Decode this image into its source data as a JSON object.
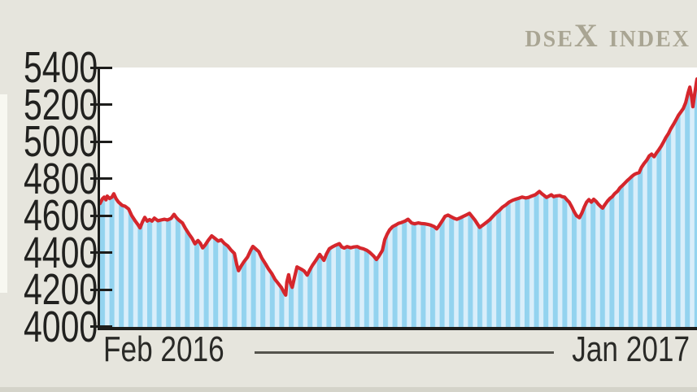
{
  "title": "dseX index",
  "colors": {
    "background": "#e6e5dd",
    "plot_background": "#ffffff",
    "stripe_dark": "#93d3ef",
    "stripe_light": "#d9eefa",
    "line": "#d5262c",
    "axis": "#1d1d1b",
    "label_text": "#21211f",
    "title_text": "#a9a593",
    "divider": "#54534c"
  },
  "x_axis": {
    "left_label": "Feb 2016",
    "right_label": "Jan 2017"
  },
  "chart_data": {
    "type": "area",
    "title": "DSEX Index",
    "xlabel": "",
    "ylabel": "",
    "x_range_labels": [
      "Feb 2016",
      "Jan 2017"
    ],
    "ylim": [
      4000,
      5400
    ],
    "yticks": [
      5400,
      5200,
      5000,
      4800,
      4600,
      4400,
      4200,
      4000
    ],
    "grid": false,
    "legend": "none",
    "series": [
      {
        "name": "DSEX",
        "points_format": "[percent_along_x_axis, index_value]",
        "points": [
          [
            0.0,
            4665
          ],
          [
            0.4,
            4690
          ],
          [
            0.7,
            4700
          ],
          [
            1.0,
            4685
          ],
          [
            1.2,
            4705
          ],
          [
            1.6,
            4692
          ],
          [
            2.0,
            4700
          ],
          [
            2.3,
            4718
          ],
          [
            2.7,
            4690
          ],
          [
            3.1,
            4672
          ],
          [
            3.7,
            4655
          ],
          [
            4.2,
            4650
          ],
          [
            4.8,
            4635
          ],
          [
            5.3,
            4600
          ],
          [
            5.9,
            4570
          ],
          [
            6.4,
            4548
          ],
          [
            6.7,
            4533
          ],
          [
            7.1,
            4565
          ],
          [
            7.5,
            4590
          ],
          [
            7.9,
            4570
          ],
          [
            8.3,
            4578
          ],
          [
            8.7,
            4570
          ],
          [
            9.1,
            4586
          ],
          [
            9.7,
            4572
          ],
          [
            10.2,
            4576
          ],
          [
            10.8,
            4580
          ],
          [
            11.3,
            4576
          ],
          [
            11.9,
            4584
          ],
          [
            12.4,
            4606
          ],
          [
            12.8,
            4588
          ],
          [
            13.2,
            4575
          ],
          [
            13.8,
            4560
          ],
          [
            14.3,
            4530
          ],
          [
            14.9,
            4500
          ],
          [
            15.4,
            4478
          ],
          [
            15.9,
            4447
          ],
          [
            16.4,
            4465
          ],
          [
            16.8,
            4450
          ],
          [
            17.2,
            4425
          ],
          [
            17.6,
            4440
          ],
          [
            18.1,
            4465
          ],
          [
            18.7,
            4490
          ],
          [
            19.2,
            4478
          ],
          [
            19.8,
            4462
          ],
          [
            20.3,
            4468
          ],
          [
            20.8,
            4450
          ],
          [
            21.4,
            4435
          ],
          [
            21.9,
            4415
          ],
          [
            22.5,
            4395
          ],
          [
            22.9,
            4335
          ],
          [
            23.2,
            4302
          ],
          [
            23.6,
            4325
          ],
          [
            24.1,
            4350
          ],
          [
            24.7,
            4375
          ],
          [
            25.2,
            4410
          ],
          [
            25.6,
            4433
          ],
          [
            26.0,
            4422
          ],
          [
            26.6,
            4405
          ],
          [
            27.1,
            4370
          ],
          [
            27.7,
            4340
          ],
          [
            28.2,
            4312
          ],
          [
            28.8,
            4285
          ],
          [
            29.3,
            4255
          ],
          [
            29.8,
            4235
          ],
          [
            30.4,
            4210
          ],
          [
            30.8,
            4185
          ],
          [
            31.1,
            4170
          ],
          [
            31.3,
            4240
          ],
          [
            31.6,
            4280
          ],
          [
            31.9,
            4235
          ],
          [
            32.2,
            4212
          ],
          [
            32.6,
            4270
          ],
          [
            33.0,
            4322
          ],
          [
            33.4,
            4315
          ],
          [
            33.8,
            4308
          ],
          [
            34.2,
            4300
          ],
          [
            34.7,
            4278
          ],
          [
            35.2,
            4310
          ],
          [
            35.6,
            4332
          ],
          [
            36.0,
            4350
          ],
          [
            36.4,
            4370
          ],
          [
            36.8,
            4390
          ],
          [
            37.2,
            4372
          ],
          [
            37.5,
            4358
          ],
          [
            37.9,
            4390
          ],
          [
            38.4,
            4420
          ],
          [
            39.0,
            4432
          ],
          [
            39.5,
            4440
          ],
          [
            40.1,
            4448
          ],
          [
            40.5,
            4430
          ],
          [
            40.9,
            4424
          ],
          [
            41.4,
            4432
          ],
          [
            42.0,
            4426
          ],
          [
            42.5,
            4430
          ],
          [
            43.1,
            4432
          ],
          [
            43.6,
            4424
          ],
          [
            44.1,
            4420
          ],
          [
            44.7,
            4412
          ],
          [
            45.2,
            4400
          ],
          [
            45.8,
            4382
          ],
          [
            46.3,
            4362
          ],
          [
            46.7,
            4380
          ],
          [
            47.3,
            4412
          ],
          [
            47.7,
            4470
          ],
          [
            48.1,
            4500
          ],
          [
            48.5,
            4522
          ],
          [
            49.0,
            4540
          ],
          [
            49.6,
            4550
          ],
          [
            50.0,
            4558
          ],
          [
            50.5,
            4562
          ],
          [
            51.1,
            4570
          ],
          [
            51.6,
            4580
          ],
          [
            52.2,
            4560
          ],
          [
            52.7,
            4555
          ],
          [
            53.3,
            4560
          ],
          [
            53.8,
            4557
          ],
          [
            54.4,
            4555
          ],
          [
            54.9,
            4552
          ],
          [
            55.4,
            4548
          ],
          [
            56.0,
            4540
          ],
          [
            56.4,
            4528
          ],
          [
            56.8,
            4545
          ],
          [
            57.4,
            4575
          ],
          [
            57.8,
            4596
          ],
          [
            58.3,
            4602
          ],
          [
            58.7,
            4595
          ],
          [
            59.3,
            4585
          ],
          [
            59.8,
            4580
          ],
          [
            60.4,
            4588
          ],
          [
            60.9,
            4596
          ],
          [
            61.4,
            4604
          ],
          [
            61.9,
            4612
          ],
          [
            62.3,
            4595
          ],
          [
            62.8,
            4575
          ],
          [
            63.2,
            4555
          ],
          [
            63.6,
            4536
          ],
          [
            64.2,
            4550
          ],
          [
            64.7,
            4562
          ],
          [
            65.3,
            4578
          ],
          [
            65.8,
            4595
          ],
          [
            66.3,
            4612
          ],
          [
            66.9,
            4628
          ],
          [
            67.4,
            4645
          ],
          [
            68.0,
            4658
          ],
          [
            68.5,
            4672
          ],
          [
            69.1,
            4682
          ],
          [
            69.6,
            4688
          ],
          [
            70.2,
            4694
          ],
          [
            70.7,
            4700
          ],
          [
            71.3,
            4695
          ],
          [
            71.8,
            4698
          ],
          [
            72.3,
            4705
          ],
          [
            72.9,
            4712
          ],
          [
            73.3,
            4722
          ],
          [
            73.6,
            4730
          ],
          [
            74.0,
            4718
          ],
          [
            74.4,
            4708
          ],
          [
            74.8,
            4698
          ],
          [
            75.2,
            4705
          ],
          [
            75.6,
            4712
          ],
          [
            76.0,
            4702
          ],
          [
            76.4,
            4706
          ],
          [
            77.0,
            4708
          ],
          [
            77.4,
            4702
          ],
          [
            77.8,
            4700
          ],
          [
            78.2,
            4685
          ],
          [
            78.6,
            4672
          ],
          [
            79.0,
            4648
          ],
          [
            79.4,
            4622
          ],
          [
            79.8,
            4600
          ],
          [
            80.3,
            4588
          ],
          [
            80.7,
            4612
          ],
          [
            81.1,
            4645
          ],
          [
            81.5,
            4672
          ],
          [
            81.9,
            4686
          ],
          [
            82.3,
            4672
          ],
          [
            82.7,
            4688
          ],
          [
            83.1,
            4676
          ],
          [
            83.5,
            4660
          ],
          [
            83.9,
            4648
          ],
          [
            84.2,
            4640
          ],
          [
            84.6,
            4660
          ],
          [
            85.0,
            4678
          ],
          [
            85.4,
            4692
          ],
          [
            85.8,
            4702
          ],
          [
            86.2,
            4718
          ],
          [
            86.7,
            4732
          ],
          [
            87.1,
            4750
          ],
          [
            87.5,
            4762
          ],
          [
            87.9,
            4775
          ],
          [
            88.3,
            4788
          ],
          [
            88.7,
            4800
          ],
          [
            89.1,
            4812
          ],
          [
            89.5,
            4822
          ],
          [
            89.9,
            4828
          ],
          [
            90.3,
            4832
          ],
          [
            90.7,
            4860
          ],
          [
            91.1,
            4880
          ],
          [
            91.6,
            4900
          ],
          [
            92.0,
            4922
          ],
          [
            92.4,
            4932
          ],
          [
            92.8,
            4918
          ],
          [
            93.2,
            4938
          ],
          [
            93.6,
            4955
          ],
          [
            94.0,
            4975
          ],
          [
            94.4,
            4998
          ],
          [
            94.8,
            5022
          ],
          [
            95.2,
            5042
          ],
          [
            95.6,
            5068
          ],
          [
            96.1,
            5095
          ],
          [
            96.5,
            5118
          ],
          [
            96.9,
            5142
          ],
          [
            97.3,
            5160
          ],
          [
            97.7,
            5178
          ],
          [
            98.1,
            5210
          ],
          [
            98.5,
            5262
          ],
          [
            98.8,
            5294
          ],
          [
            99.1,
            5240
          ],
          [
            99.3,
            5188
          ],
          [
            99.6,
            5255
          ],
          [
            99.9,
            5320
          ],
          [
            100.0,
            5338
          ]
        ]
      }
    ]
  }
}
